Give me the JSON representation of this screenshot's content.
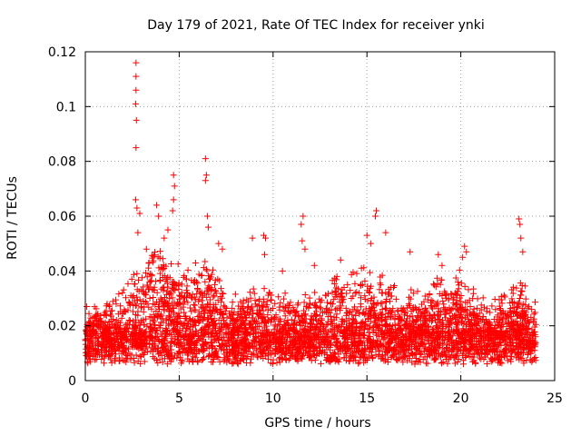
{
  "chart_data": {
    "type": "scatter",
    "title": "Day 179 of 2021, Rate Of TEC Index for receiver ynki",
    "xlabel": "GPS time / hours",
    "ylabel": "ROTI / TECUs",
    "xlim": [
      0,
      25
    ],
    "ylim": [
      0,
      0.12
    ],
    "x_ticks": [
      0,
      5,
      10,
      15,
      20,
      25
    ],
    "x_tick_labels": [
      "0",
      "5",
      "10",
      "15",
      "20",
      "25"
    ],
    "y_ticks": [
      0,
      0.02,
      0.04,
      0.06,
      0.08,
      0.1,
      0.12
    ],
    "y_tick_labels": [
      "0",
      "0.02",
      "0.04",
      "0.06",
      "0.08",
      "0.1",
      "0.12"
    ],
    "grid": true,
    "marker": "+",
    "series": [
      {
        "name": "ROTI",
        "color": "#ff0000",
        "x": [
          2.7,
          2.7,
          2.7,
          2.68,
          2.72,
          2.7,
          2.68,
          2.75,
          2.9,
          2.8,
          4.7,
          4.75,
          4.7,
          4.65,
          6.4,
          6.45,
          6.4,
          6.5,
          6.55,
          9.5,
          9.6,
          9.55,
          8.9,
          11.6,
          11.5,
          11.55,
          11.7,
          15.5,
          15.45,
          15.0,
          15.2,
          16.0,
          20.2,
          20.3,
          20.1,
          23.1,
          23.15,
          23.2,
          23.3,
          3.8,
          3.9,
          4.2,
          4.4,
          7.1,
          7.3,
          10.5,
          12.2,
          13.6,
          17.3,
          18.8,
          19.0
        ],
        "y": [
          0.116,
          0.111,
          0.106,
          0.101,
          0.095,
          0.085,
          0.066,
          0.063,
          0.061,
          0.054,
          0.075,
          0.071,
          0.066,
          0.062,
          0.081,
          0.075,
          0.073,
          0.06,
          0.056,
          0.053,
          0.052,
          0.046,
          0.052,
          0.06,
          0.057,
          0.051,
          0.048,
          0.062,
          0.06,
          0.053,
          0.05,
          0.054,
          0.049,
          0.047,
          0.045,
          0.059,
          0.057,
          0.052,
          0.047,
          0.064,
          0.06,
          0.052,
          0.055,
          0.05,
          0.048,
          0.04,
          0.042,
          0.044,
          0.047,
          0.046,
          0.042
        ],
        "background_cloud": {
          "x_range": [
            0,
            24
          ],
          "y_range_typical": [
            0.003,
            0.035
          ],
          "note": "dense band of thousands of points, median about 0.013 TECU, elevated 0.02-0.045 around hours 2-8 and 13-21"
        }
      }
    ]
  }
}
